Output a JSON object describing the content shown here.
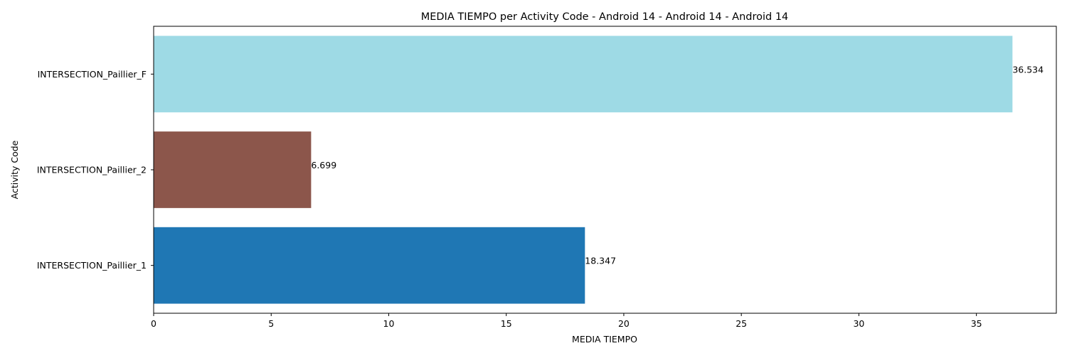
{
  "chart_data": {
    "type": "bar",
    "orientation": "horizontal",
    "title": "MEDIA TIEMPO per Activity Code - Android 14 - Android 14 - Android 14",
    "xlabel": "MEDIA TIEMPO",
    "ylabel": "Activity Code",
    "categories": [
      "INTERSECTION_Paillier_1",
      "INTERSECTION_Paillier_2",
      "INTERSECTION_Paillier_F"
    ],
    "values": [
      18.347,
      6.699,
      36.534
    ],
    "value_labels": [
      "18.347",
      "6.699",
      "36.534"
    ],
    "colors": [
      "#1f77b4",
      "#8c564b",
      "#9edae5"
    ],
    "xlim": [
      0,
      38.4
    ],
    "xticks": [
      0,
      5,
      10,
      15,
      20,
      25,
      30,
      35
    ],
    "grid": false,
    "legend": "none"
  }
}
